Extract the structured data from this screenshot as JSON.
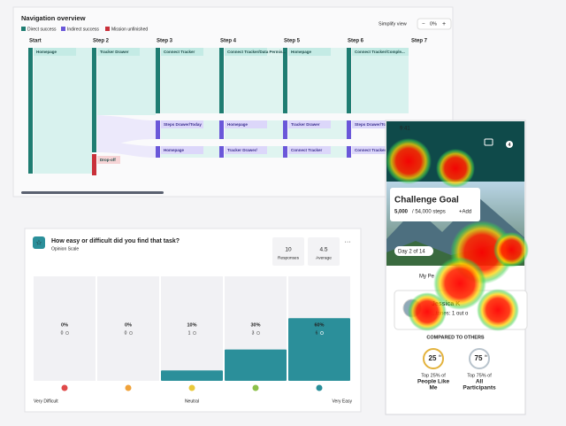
{
  "navigation": {
    "title": "Navigation overview",
    "legend": [
      "Direct success",
      "Indirect success",
      "Mission unfinished"
    ],
    "simplify_label": "Simplify view",
    "simplify_value": "0%",
    "steps": [
      "Start",
      "Step 2",
      "Step 3",
      "Step 4",
      "Step 5",
      "Step 6",
      "Step 7"
    ],
    "nodes": [
      "Homepage",
      "Tracker Drawer",
      "Connect Tracker",
      "Connect Tracker/Data Permis...",
      "Homepage",
      "Connect Tracker/Comple...",
      "Drop-off",
      "Steps Drawer/Today",
      "Homepage",
      "Tracker Drawer",
      "Steps Drawer/Today",
      "Homepage",
      "Tracker Drawer/",
      "Connect Tracker",
      "Connect Tracker/..."
    ]
  },
  "opinion": {
    "title": "How easy or difficult did you find that task?",
    "subtitle": "Opinion Scale",
    "responses": 10,
    "responses_label": "Responses",
    "average": 4.5,
    "average_label": "Average",
    "values": [
      0,
      0,
      10,
      30,
      60
    ],
    "value_labels": [
      "0%",
      "0%",
      "10%",
      "30%",
      "60%"
    ],
    "counts": [
      0,
      0,
      1,
      3,
      6
    ],
    "ylim": [
      0,
      100
    ],
    "color": "#2b8f9a",
    "scale_labels": [
      "Very Difficult",
      "Neutral",
      "Very Easy"
    ]
  },
  "phone": {
    "time": "9:41",
    "badge": "4",
    "card_title": "Challenge Goal",
    "steps_done": "5,000",
    "steps_total": "/ 54,000 steps",
    "add": "+Add",
    "day": "Day 2 of 14",
    "tab": "My Pe",
    "name": "Jessica K",
    "milestones": "...tones: 1 out o",
    "compared": "COMPARED TO OTHERS",
    "ranks": [
      {
        "value": "25",
        "suffix": "th",
        "line1": "Top 25% of",
        "line2": "People Like",
        "line3": "Me"
      },
      {
        "value": "75",
        "suffix": "th",
        "line1": "Top 75% of",
        "line2": "All",
        "line3": "Participants"
      }
    ]
  }
}
